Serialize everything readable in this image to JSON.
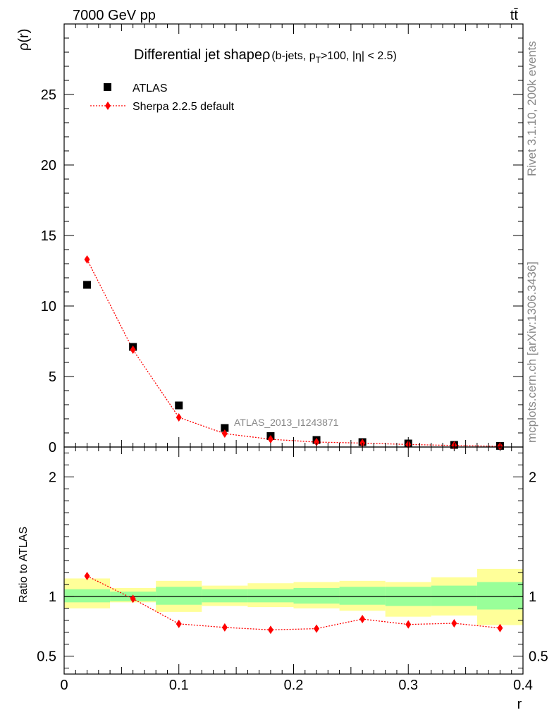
{
  "header": {
    "left": "7000 GeV pp",
    "right": "tt̄"
  },
  "side_notes": {
    "top": "Rivet 3.1.10,  200k events",
    "bottom": "mcplots.cern.ch [arXiv:1306.3436]"
  },
  "watermark": "ATLAS_2013_I1243871",
  "chart_data": [
    {
      "type": "scatter",
      "title": "Differential jet shapeρ (b-jets, p_T>100, |η| < 2.5)",
      "title_main": "Differential jet shapeρ",
      "title_sub_before": "(b-jets, p",
      "title_sub_script": "T",
      "title_sub_after": ">100, |η| < 2.5)",
      "xlabel": "r",
      "ylabel": "ρ(r)",
      "xlim": [
        0,
        0.4
      ],
      "ylim": [
        0,
        30
      ],
      "yticks": [
        0,
        5,
        10,
        15,
        20,
        25
      ],
      "legend_position": "top-left",
      "x": [
        0.02,
        0.06,
        0.1,
        0.14,
        0.18,
        0.22,
        0.26,
        0.3,
        0.34,
        0.38
      ],
      "series": [
        {
          "name": "ATLAS",
          "marker": "square",
          "color": "#000000",
          "values": [
            11.5,
            7.1,
            2.95,
            1.35,
            0.78,
            0.5,
            0.35,
            0.25,
            0.15,
            0.08
          ]
        },
        {
          "name": "Sherpa 2.2.5 default",
          "marker": "diamond",
          "line": "dotted",
          "color": "#ff0000",
          "values": [
            13.3,
            6.9,
            2.1,
            0.95,
            0.55,
            0.35,
            0.28,
            0.18,
            0.11,
            0.05
          ]
        }
      ]
    },
    {
      "type": "line",
      "ylabel": "Ratio to ATLAS",
      "xlabel": "r",
      "xlim": [
        0,
        0.4
      ],
      "xticks": [
        0,
        0.1,
        0.2,
        0.3,
        0.4
      ],
      "ylim": [
        0.35,
        2.25
      ],
      "yticks": [
        0.5,
        1,
        2
      ],
      "bin_edges": [
        0,
        0.04,
        0.08,
        0.12,
        0.16,
        0.2,
        0.24,
        0.28,
        0.32,
        0.36,
        0.4
      ],
      "bands": {
        "stat_color": "#99ff99",
        "total_color": "#ffff99",
        "stat_low": [
          0.95,
          0.96,
          0.93,
          0.95,
          0.95,
          0.94,
          0.93,
          0.92,
          0.92,
          0.89
        ],
        "stat_high": [
          1.06,
          1.04,
          1.08,
          1.06,
          1.06,
          1.07,
          1.08,
          1.08,
          1.09,
          1.12
        ],
        "total_low": [
          0.9,
          0.95,
          0.87,
          0.92,
          0.91,
          0.9,
          0.88,
          0.83,
          0.84,
          0.76
        ],
        "total_high": [
          1.15,
          1.07,
          1.13,
          1.09,
          1.11,
          1.12,
          1.13,
          1.12,
          1.16,
          1.23
        ]
      },
      "reference": 1,
      "x": [
        0.02,
        0.06,
        0.1,
        0.14,
        0.18,
        0.22,
        0.26,
        0.3,
        0.34,
        0.38
      ],
      "series": [
        {
          "name": "Sherpa 2.2.5 default",
          "marker": "diamond",
          "line": "dotted",
          "color": "#ff0000",
          "values": [
            1.17,
            0.98,
            0.77,
            0.74,
            0.72,
            0.73,
            0.81,
            0.765,
            0.775,
            0.735
          ]
        }
      ]
    }
  ]
}
